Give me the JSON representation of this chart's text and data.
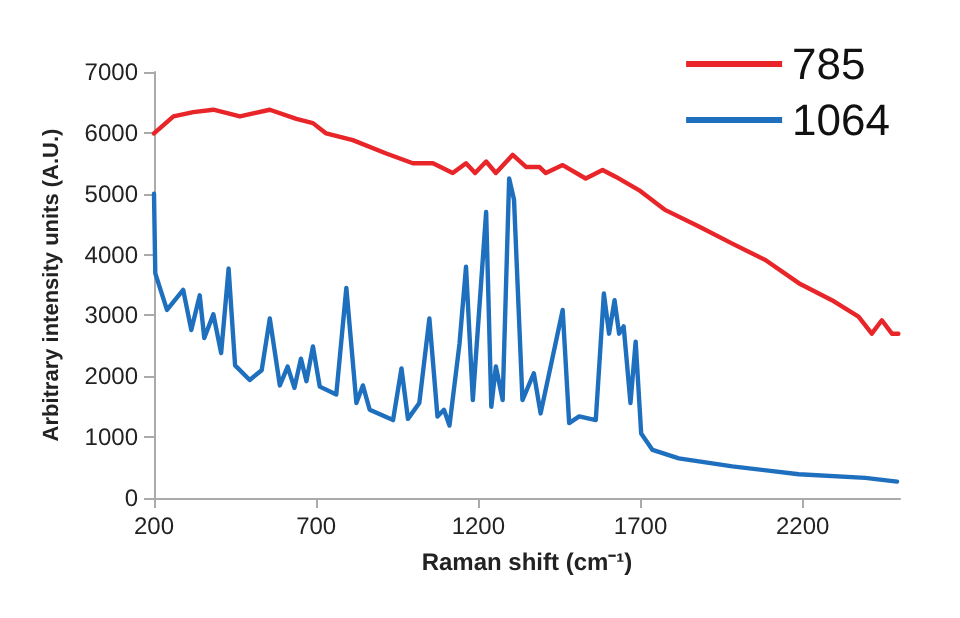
{
  "chart_data": {
    "type": "line",
    "xlabel": "Raman shift (cm⁻¹)",
    "ylabel": "Arbitrary intensity units (A.U.)",
    "xlim": [
      200,
      2500
    ],
    "xticks": [
      200,
      700,
      1200,
      1700,
      2200
    ],
    "ylim": [
      0,
      7000
    ],
    "yticks": [
      0,
      1000,
      2000,
      3000,
      4000,
      5000,
      6000,
      7000
    ],
    "grid": false,
    "legend": "top right",
    "marker": "none",
    "line_style": "solid",
    "series": [
      {
        "name": "785",
        "color": "#e8262a",
        "x": [
          200,
          260,
          321,
          383,
          465,
          557,
          639,
          690,
          731,
          813,
          916,
          998,
          1060,
          1121,
          1162,
          1190,
          1224,
          1254,
          1306,
          1347,
          1388,
          1408,
          1460,
          1531,
          1583,
          1623,
          1695,
          1777,
          1880,
          1983,
          2085,
          2188,
          2290,
          2372,
          2413,
          2444,
          2475,
          2495
        ],
        "values": [
          5990,
          6270,
          6340,
          6380,
          6270,
          6380,
          6230,
          6160,
          5990,
          5880,
          5660,
          5500,
          5500,
          5340,
          5500,
          5340,
          5530,
          5340,
          5640,
          5440,
          5440,
          5340,
          5470,
          5250,
          5390,
          5280,
          5060,
          4730,
          4460,
          4180,
          3910,
          3530,
          3250,
          2980,
          2700,
          2920,
          2700,
          2700
        ]
      },
      {
        "name": "1064",
        "color": "#1f6fbf",
        "x": [
          200,
          204,
          240,
          290,
          315,
          341,
          355,
          383,
          407,
          430,
          450,
          495,
          532,
          557,
          588,
          612,
          633,
          653,
          670,
          690,
          711,
          762,
          793,
          824,
          844,
          865,
          937,
          963,
          983,
          1018,
          1049,
          1074,
          1094,
          1111,
          1142,
          1162,
          1183,
          1224,
          1240,
          1254,
          1275,
          1295,
          1310,
          1336,
          1371,
          1392,
          1460,
          1480,
          1511,
          1562,
          1587,
          1603,
          1620,
          1634,
          1648,
          1669,
          1685,
          1702,
          1737,
          1818,
          1983,
          2188,
          2393,
          2491
        ],
        "values": [
          5000,
          3690,
          3090,
          3420,
          2760,
          3330,
          2630,
          3020,
          2380,
          3770,
          2180,
          1940,
          2100,
          2950,
          1850,
          2160,
          1810,
          2290,
          1920,
          2490,
          1830,
          1700,
          3450,
          1560,
          1850,
          1450,
          1280,
          2130,
          1300,
          1560,
          2950,
          1340,
          1450,
          1190,
          2540,
          3800,
          1610,
          4700,
          1500,
          2160,
          1610,
          5250,
          4900,
          1610,
          2050,
          1390,
          3090,
          1230,
          1340,
          1280,
          3360,
          2700,
          3250,
          2700,
          2820,
          1560,
          2570,
          1060,
          790,
          650,
          520,
          390,
          330,
          270
        ]
      }
    ]
  }
}
